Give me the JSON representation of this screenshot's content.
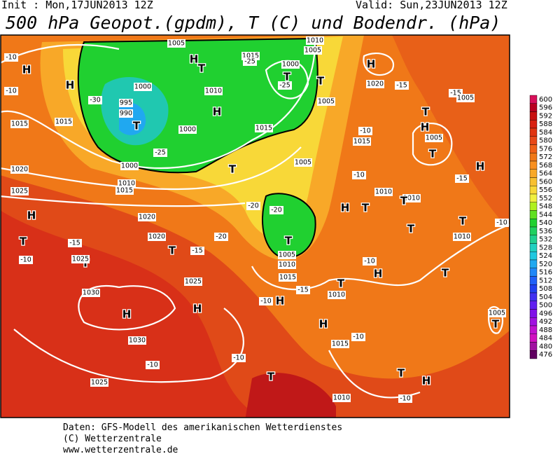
{
  "header": {
    "init": "Init : Mon,17JUN2013 12Z",
    "valid": "Valid: Sun,23JUN2013 12Z",
    "title": "500 hPa Geopot.(gpdm), T (C) und Bodendr. (hPa)"
  },
  "map_labels": [
    "H",
    "H",
    "H",
    "T",
    "T",
    "995",
    "990",
    "1000",
    "1005",
    "1015",
    "1000",
    "T",
    "-25",
    "H",
    "T",
    "1010",
    "1005",
    "-25",
    "1010",
    "1005",
    "-30",
    "1000",
    "-25",
    "1000",
    "1010",
    "1015",
    "1015",
    "1015",
    "1020",
    "1025",
    "T",
    "1015",
    "1005",
    "H",
    "1020",
    "-15",
    "-15",
    "1005",
    "T",
    "H",
    "1005",
    "T",
    "-10",
    "1015",
    "-15",
    "-10",
    "1010",
    "H",
    "1010",
    "H",
    "T",
    "-20",
    "-20",
    "1020",
    "H",
    "T",
    "-15",
    "-10",
    "T",
    "1025",
    "-20",
    "1020",
    "T",
    "-15",
    "T",
    "1005",
    "1010",
    "1015",
    "H",
    "T",
    "1010",
    "-15",
    "-10",
    "H",
    "1025",
    "1030",
    "H",
    "H",
    "1030",
    "H",
    "1015",
    "-10",
    "T",
    "1010",
    "T",
    "-10",
    "T",
    "T",
    "-10",
    "-10",
    "1005",
    "T",
    "-10",
    "-10",
    "-10",
    "1025",
    "T",
    "T",
    "H",
    "1010",
    "-10"
  ],
  "colorbar": {
    "levels": [
      600,
      596,
      592,
      588,
      584,
      580,
      576,
      572,
      568,
      564,
      560,
      556,
      552,
      548,
      544,
      540,
      536,
      532,
      528,
      524,
      520,
      516,
      512,
      508,
      504,
      500,
      496,
      492,
      488,
      484,
      480,
      476
    ],
    "colors": [
      "#d8105a",
      "#b80020",
      "#c81010",
      "#d82010",
      "#e03410",
      "#e84818",
      "#f06018",
      "#f07818",
      "#f89020",
      "#f8a828",
      "#f8c030",
      "#f8d838",
      "#f0f040",
      "#b0f020",
      "#60e020",
      "#20d030",
      "#20d060",
      "#20d090",
      "#20d0c0",
      "#20c8e0",
      "#20a8f0",
      "#2088f8",
      "#2060f8",
      "#2040f0",
      "#4030f0",
      "#6020f0",
      "#8010e8",
      "#a010e0",
      "#c010d0",
      "#d010c0",
      "#a010a0",
      "#600060"
    ]
  },
  "footer": [
    "Daten: GFS-Modell des amerikanischen Wetterdienstes",
    "(C) Wetterzentrale",
    "www.wetterzentrale.de"
  ]
}
